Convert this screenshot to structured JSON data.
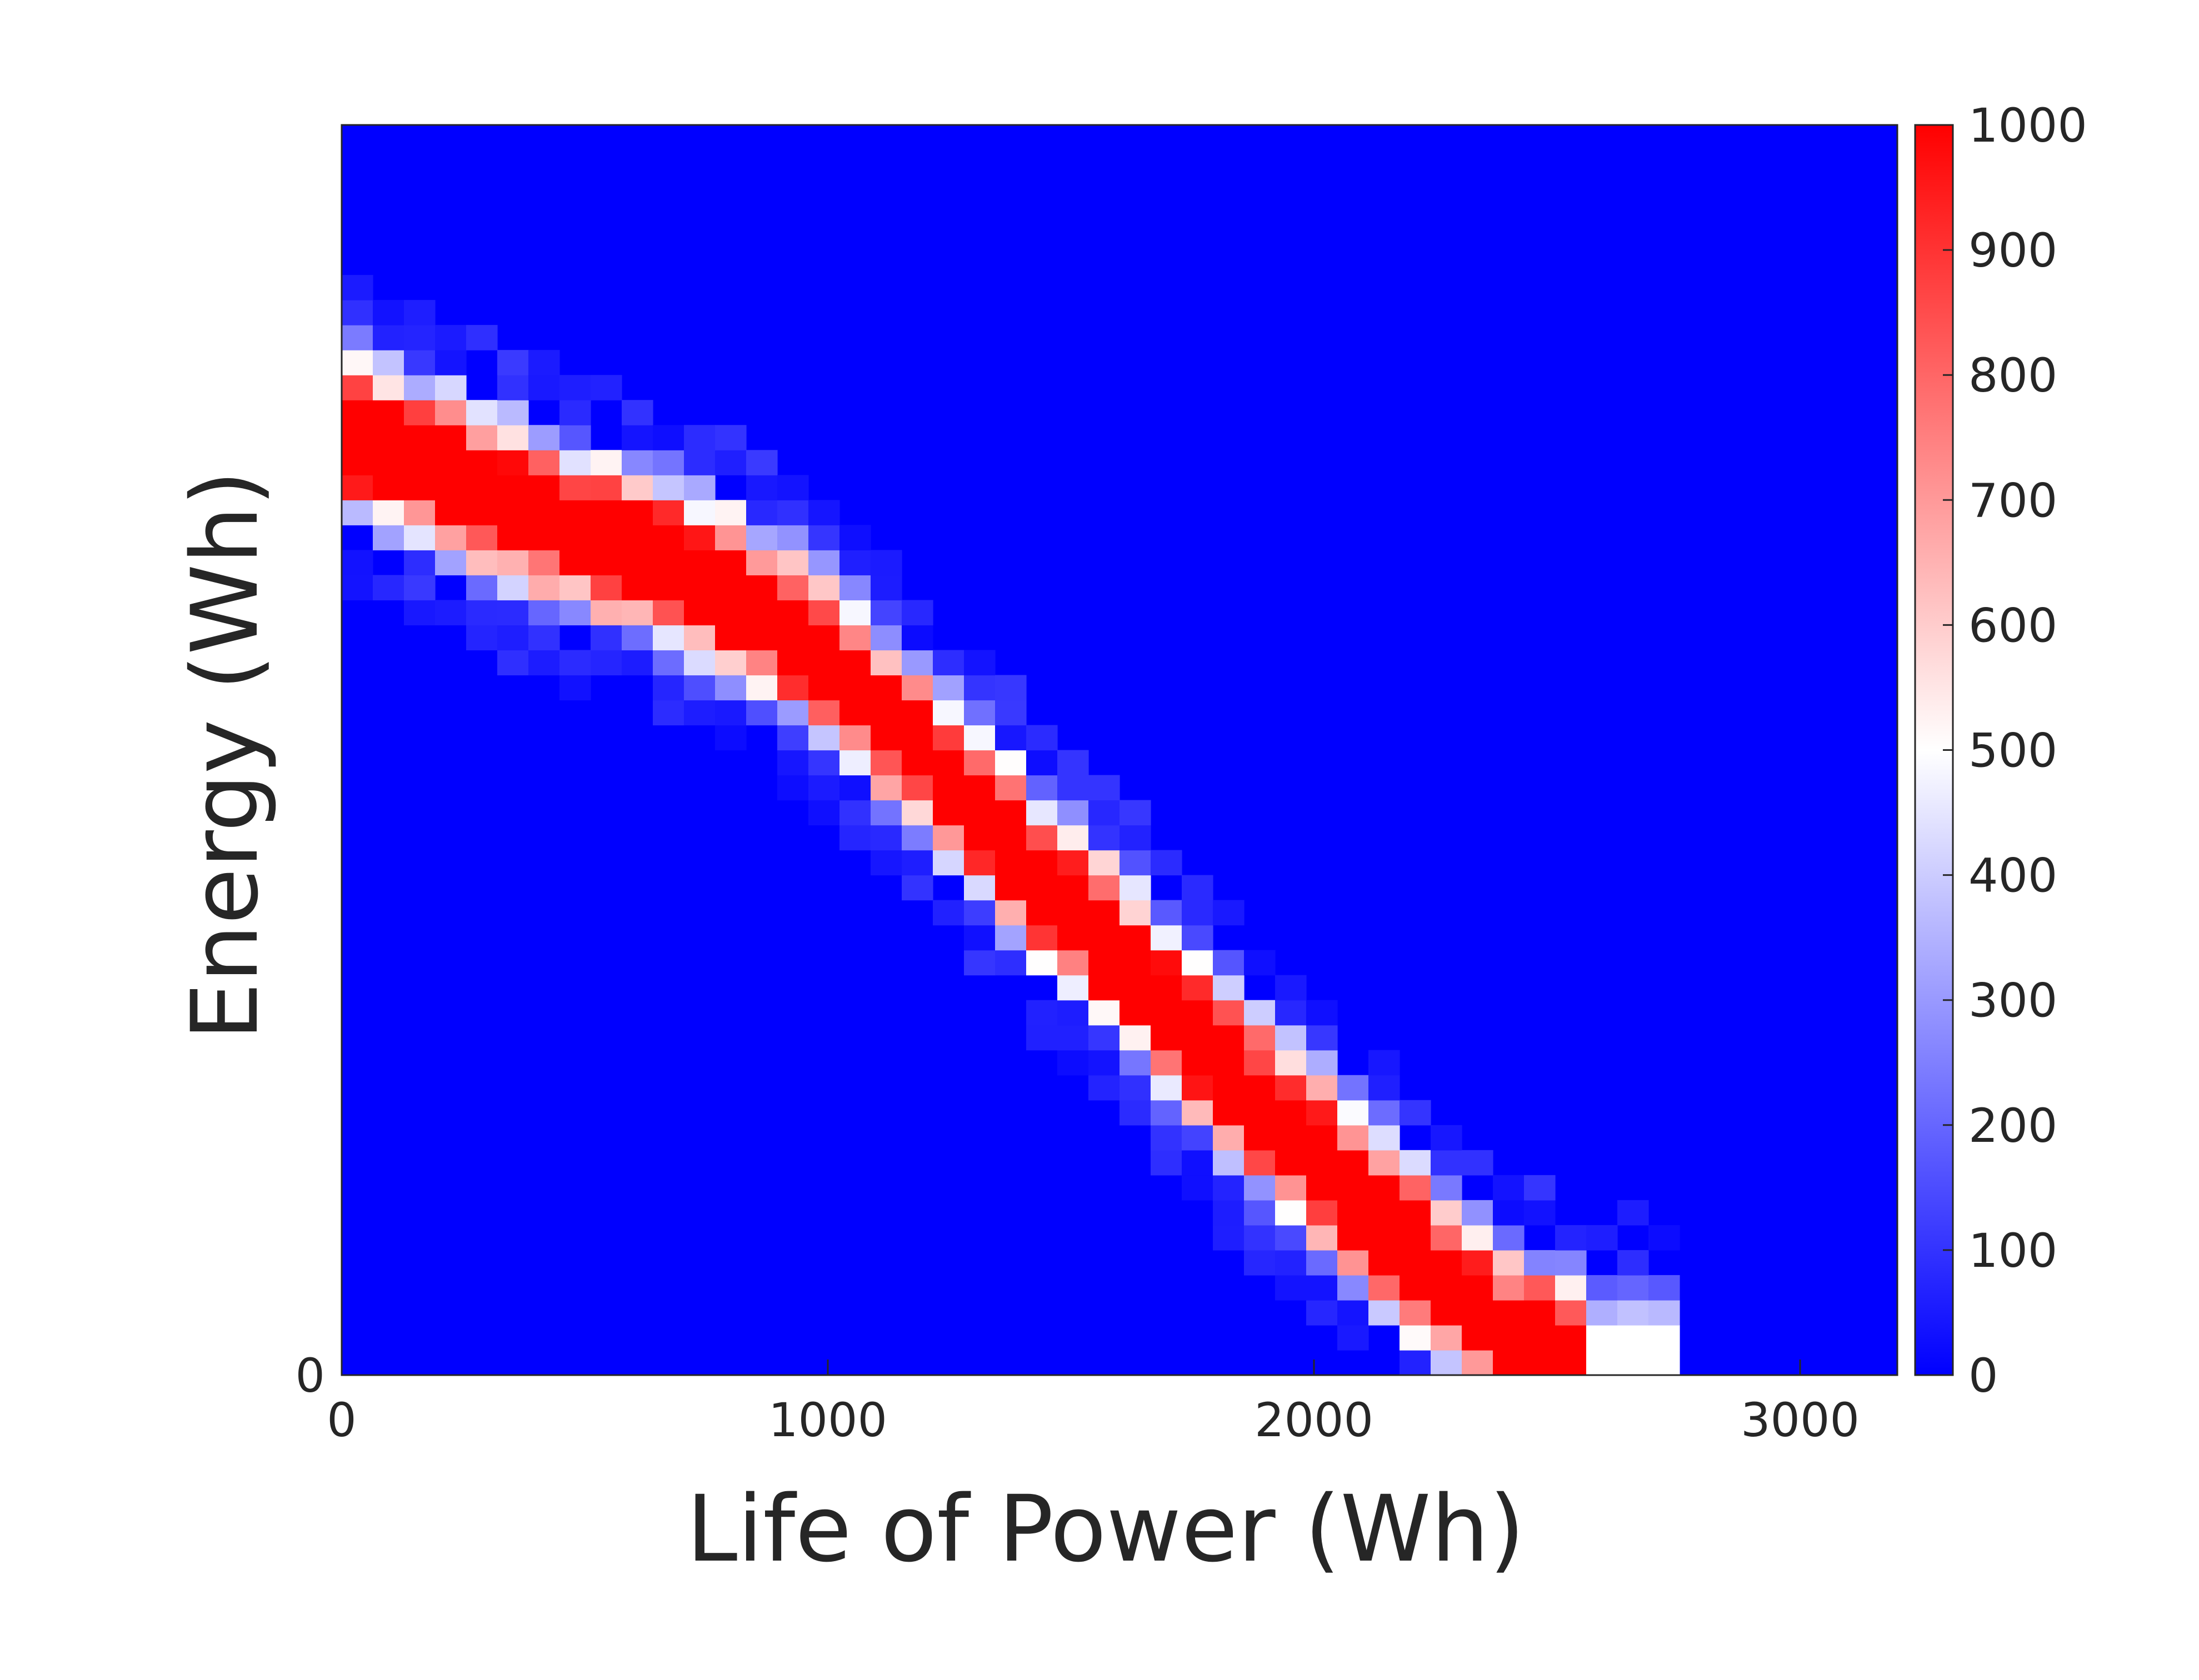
{
  "chart_data": {
    "type": "heatmap",
    "xlabel": "Life of Power (Wh)",
    "ylabel": "Energy (Wh)",
    "xlim": [
      0,
      3200
    ],
    "ylim": [
      0,
      1
    ],
    "x_ticks": [
      {
        "value": 0,
        "label": "0"
      },
      {
        "value": 1000,
        "label": "1000"
      },
      {
        "value": 2000,
        "label": "2000"
      },
      {
        "value": 3000,
        "label": "3000"
      }
    ],
    "y_ticks": [
      {
        "value": 0,
        "label": "0"
      }
    ],
    "colorbar": {
      "min": 0,
      "max": 1000,
      "colormap": "blue-white-red",
      "low_color": "#0000ff",
      "mid_color": "#ffffff",
      "high_color": "#ff0000",
      "ticks": [
        {
          "value": 0,
          "label": "0"
        },
        {
          "value": 100,
          "label": "100"
        },
        {
          "value": 200,
          "label": "200"
        },
        {
          "value": 300,
          "label": "300"
        },
        {
          "value": 400,
          "label": "400"
        },
        {
          "value": 500,
          "label": "500"
        },
        {
          "value": 600,
          "label": "600"
        },
        {
          "value": 700,
          "label": "700"
        },
        {
          "value": 800,
          "label": "800"
        },
        {
          "value": 900,
          "label": "900"
        },
        {
          "value": 1000,
          "label": "1000"
        }
      ]
    },
    "grid": {
      "x_bins": 50,
      "y_bins": 50,
      "x_bin_width_wh": 64,
      "background_value": 0
    },
    "ridge_points": [
      [
        0.0,
        0.755
      ],
      [
        0.05,
        0.73
      ],
      [
        0.1,
        0.7
      ],
      [
        0.15,
        0.675
      ],
      [
        0.2,
        0.655
      ],
      [
        0.25,
        0.625
      ],
      [
        0.3,
        0.585
      ],
      [
        0.35,
        0.525
      ],
      [
        0.4,
        0.465
      ],
      [
        0.45,
        0.395
      ],
      [
        0.5,
        0.335
      ],
      [
        0.55,
        0.265
      ],
      [
        0.6,
        0.205
      ],
      [
        0.65,
        0.145
      ],
      [
        0.7,
        0.085
      ],
      [
        0.75,
        0.03
      ],
      [
        0.8,
        0.0
      ]
    ],
    "ridge_half_width": [
      [
        0.0,
        0.055
      ],
      [
        0.4,
        0.055
      ],
      [
        0.8,
        0.06
      ]
    ]
  }
}
